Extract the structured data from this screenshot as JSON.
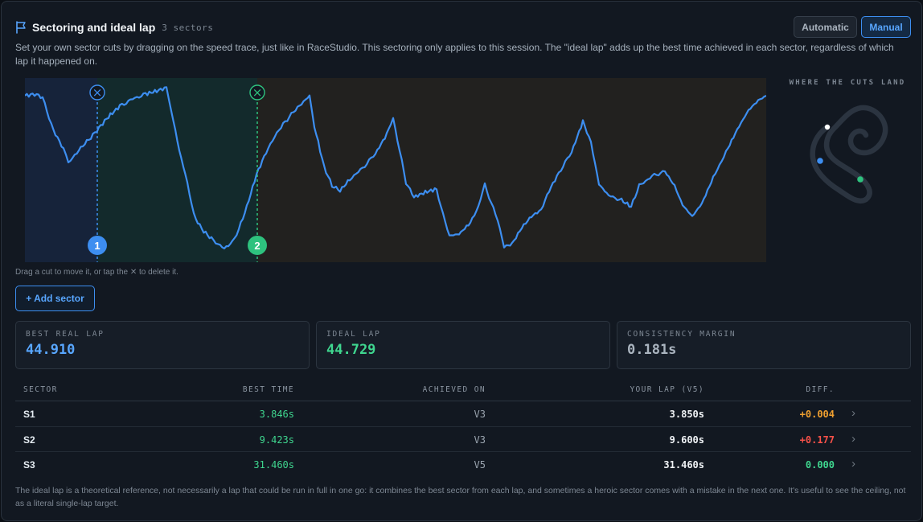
{
  "header": {
    "title": "Sectoring and ideal lap",
    "sector_count": "3 sectors",
    "mode_automatic": "Automatic",
    "mode_manual": "Manual",
    "active_mode": "Manual",
    "description": "Set your own sector cuts by dragging on the speed trace, just like in RaceStudio. This sectoring only applies to this session. The \"ideal lap\" adds up the best time achieved in each sector, regardless of which lap it happened on."
  },
  "trace": {
    "cuts": [
      {
        "number": "1",
        "delete_glyph": "×",
        "color": "#3d8ef0"
      },
      {
        "number": "2",
        "delete_glyph": "×",
        "color": "#2ec27e"
      }
    ],
    "trace_color": "#3d8ef0",
    "hint": "Drag a cut to move it, or tap the ✕ to delete it.",
    "add_sector_label": "+ Add sector"
  },
  "track_map": {
    "title": "WHERE THE CUTS LAND",
    "marker_colors": [
      "#ffffff",
      "#3d8ef0",
      "#2ec27e"
    ]
  },
  "stats": [
    {
      "label": "BEST REAL LAP",
      "value": "44.910",
      "color": "#58a6ff"
    },
    {
      "label": "IDEAL LAP",
      "value": "44.729",
      "color": "#3fd68f"
    },
    {
      "label": "CONSISTENCY MARGIN",
      "value": "0.181s",
      "color": "#aab4bf"
    }
  ],
  "table": {
    "headers": {
      "sector": "SECTOR",
      "best_time": "BEST TIME",
      "achieved_on": "ACHIEVED ON",
      "your_lap": "YOUR LAP (V5)",
      "diff": "DIFF."
    },
    "rows": [
      {
        "sector": "S1",
        "best_time": "3.846s",
        "achieved_on": "V3",
        "your_lap": "3.850s",
        "diff": "+0.004",
        "diff_color": "#f0a030"
      },
      {
        "sector": "S2",
        "best_time": "9.423s",
        "achieved_on": "V3",
        "your_lap": "9.600s",
        "diff": "+0.177",
        "diff_color": "#f85149"
      },
      {
        "sector": "S3",
        "best_time": "31.460s",
        "achieved_on": "V5",
        "your_lap": "31.460s",
        "diff": "0.000",
        "diff_color": "#3fd68f"
      }
    ],
    "chevron": "›"
  },
  "footer": "The ideal lap is a theoretical reference, not necessarily a lap that could be run in full in one go: it combines the best sector from each lap, and sometimes a heroic sector comes with a mistake in the next one. It's useful to see the ceiling, not as a literal single-lap target."
}
